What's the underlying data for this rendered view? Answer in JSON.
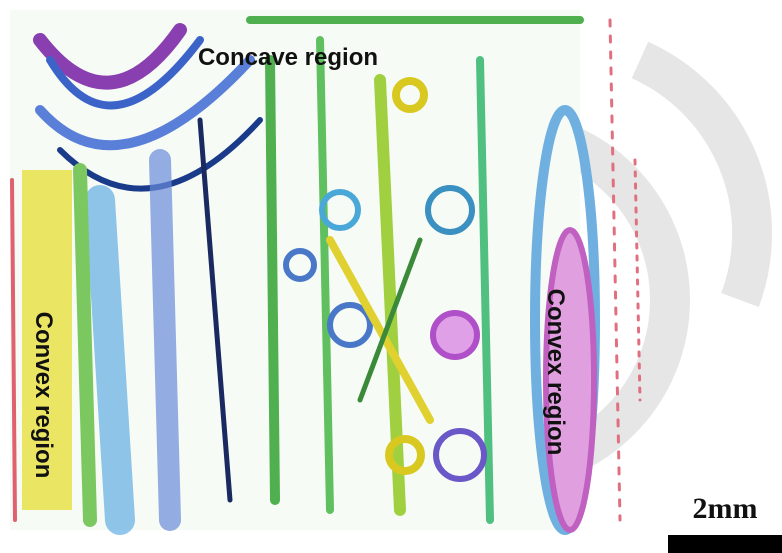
{
  "labels": {
    "top": "Concave region",
    "left": "Convex region",
    "right": "Convex region"
  },
  "scale_bar": {
    "label": "2mm"
  }
}
